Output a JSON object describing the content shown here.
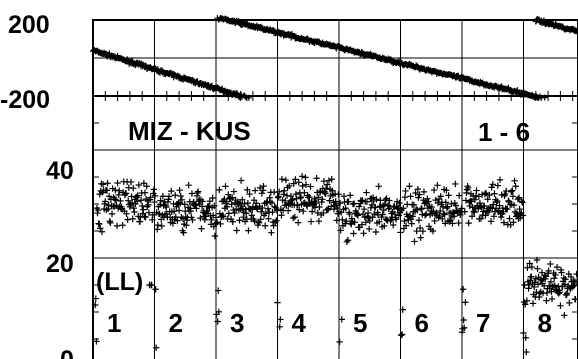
{
  "chart_data": [
    {
      "type": "scatter",
      "title": "",
      "xlabel": "",
      "ylabel": "",
      "ylim": [
        -200,
        200
      ],
      "ytick_labels": [
        "200",
        "-200"
      ],
      "grid": true,
      "marker": "plus",
      "color": "#000000",
      "series": [
        {
          "x": [
            0,
            2.6
          ],
          "y": [
            40,
            -220
          ]
        },
        {
          "x": [
            2.0,
            7.4
          ],
          "y": [
            215,
            -220
          ]
        },
        {
          "x": [
            7.2,
            8.0
          ],
          "y": [
            200,
            130
          ]
        }
      ]
    },
    {
      "type": "scatter",
      "title": "",
      "xlabel": "",
      "ylabel": "",
      "ylim": [
        0,
        50
      ],
      "ytick_labels": [
        "40",
        "20",
        "0"
      ],
      "grid": true,
      "marker": "plus",
      "color": "#000000",
      "station_pair": "MIZ - KUS",
      "channel_range": "1 - 6",
      "polarization": "(LL)",
      "segment_labels": [
        "1",
        "2",
        "3",
        "4",
        "5",
        "6",
        "7",
        "8"
      ],
      "segment_mean_amplitude": [
        30,
        29,
        29,
        31,
        28,
        29,
        30,
        15
      ]
    }
  ]
}
